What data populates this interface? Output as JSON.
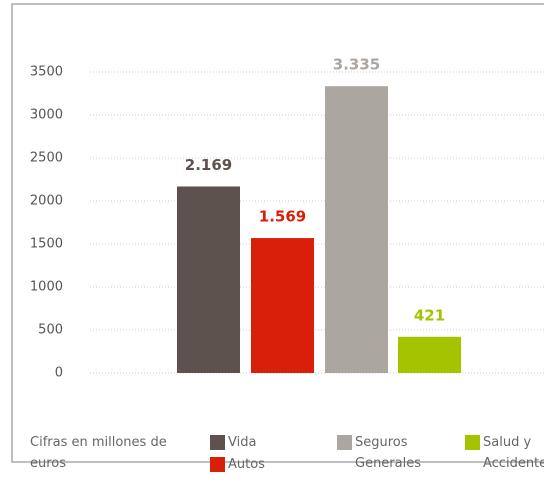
{
  "chart_data": {
    "type": "bar",
    "categories": [
      "Vida",
      "Autos",
      "Seguros Generales",
      "Salud y Accidentes"
    ],
    "values": [
      2169,
      1569,
      3335,
      421
    ],
    "value_labels": [
      "2.169",
      "1.569",
      "3.335",
      "421"
    ],
    "colors": [
      "#5d524e",
      "#d91f0a",
      "#aca6a0",
      "#a6c300"
    ],
    "note": "Cifras en millones de euros",
    "ylim": [
      0,
      3500
    ],
    "yticks": [
      0,
      500,
      1000,
      1500,
      2000,
      2500,
      3000,
      3500
    ],
    "grid": true
  }
}
